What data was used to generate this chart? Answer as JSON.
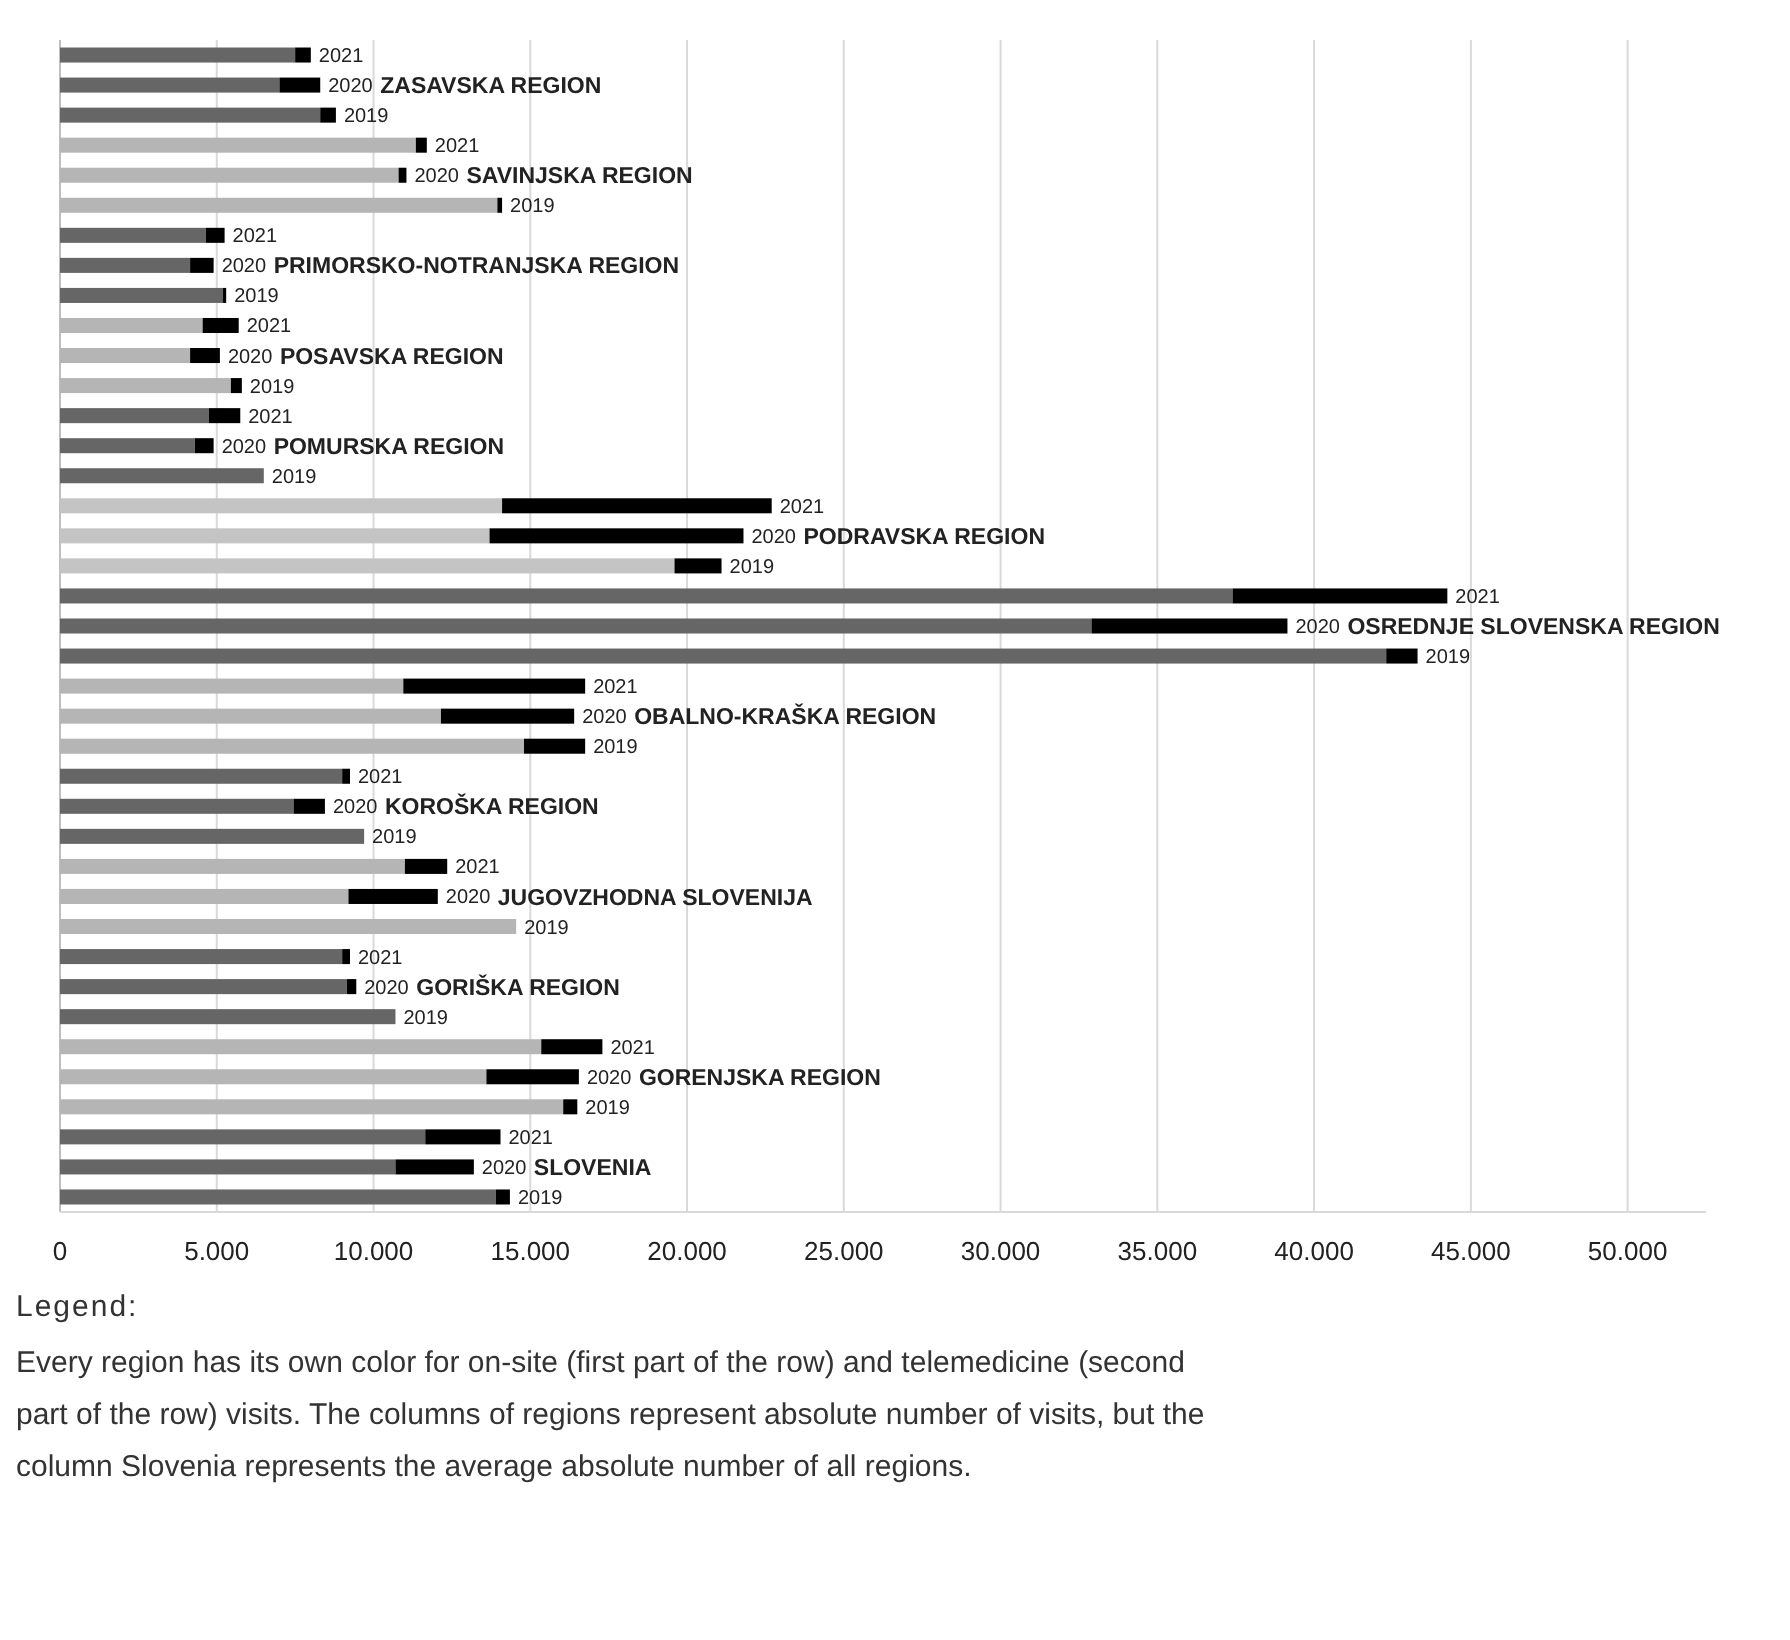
{
  "chart_data": {
    "type": "bar",
    "orientation": "horizontal",
    "stacked": true,
    "legend": false,
    "grid": "x",
    "categories": [
      null,
      null,
      null,
      null,
      null,
      null,
      null,
      null,
      null,
      null,
      null,
      null,
      null,
      null,
      null,
      null,
      null,
      null,
      null,
      null,
      null,
      null,
      null,
      null,
      null,
      null,
      null,
      null,
      null,
      null,
      null,
      null,
      null,
      null,
      null,
      null,
      null,
      null,
      null
    ],
    "xlim": [
      0,
      52500
    ],
    "xticks": [
      0,
      {
        "value": 5000,
        "label": "5.000"
      },
      {
        "value": 10000,
        "label": "10.000"
      },
      {
        "value": 15000,
        "label": "15.000"
      },
      {
        "value": 20000,
        "label": "20.000"
      },
      {
        "value": 25000,
        "label": "25.000"
      },
      {
        "value": 30000,
        "label": "30.000"
      },
      {
        "value": 35000,
        "label": "35.000"
      },
      {
        "value": 40000,
        "label": "40.000"
      },
      {
        "value": 45000,
        "label": "45.000"
      },
      {
        "value": 50000,
        "label": "50.000"
      }
    ],
    "series": [
      {
        "colors": [
          "#666666",
          "#666666",
          "#666666",
          "#b5b5b5",
          "#b5b5b5",
          "#b5b5b5",
          "#666666",
          "#666666",
          "#666666",
          "#b5b5b5",
          "#b5b5b5",
          "#b5b5b5",
          "#666666",
          "#666666",
          "#666666",
          "#c4c4c4",
          "#c4c4c4",
          "#c4c4c4",
          "#666666",
          "#666666",
          "#666666",
          "#b5b5b5",
          "#b5b5b5",
          "#b5b5b5",
          "#666666",
          "#666666",
          "#666666",
          "#b5b5b5",
          "#b5b5b5",
          "#b5b5b5",
          "#666666",
          "#666666",
          "#666666",
          "#b5b5b5",
          "#b5b5b5",
          "#b5b5b5",
          "#666666",
          "#666666",
          "#666666"
        ],
        "values": [
          7500,
          7000,
          8300,
          11350,
          10800,
          13950,
          4650,
          4150,
          5200,
          4550,
          4150,
          5450,
          4750,
          4300,
          6500,
          14100,
          13700,
          19600,
          37400,
          32900,
          42300,
          10950,
          12150,
          14800,
          9000,
          7450,
          9700,
          11000,
          9200,
          14550,
          9000,
          9150,
          10700,
          15350,
          13600,
          16050,
          11650,
          10700,
          13900
        ]
      },
      {
        "color": "#000000",
        "values": [
          500,
          1300,
          500,
          350,
          250,
          150,
          600,
          750,
          100,
          1150,
          950,
          350,
          1000,
          600,
          0,
          8600,
          8100,
          1500,
          6850,
          6250,
          1000,
          5800,
          4250,
          1950,
          250,
          1000,
          0,
          1350,
          2850,
          0,
          250,
          300,
          0,
          1950,
          2950,
          450,
          2400,
          2500,
          450
        ]
      }
    ],
    "annotations": [
      "2021",
      "2020",
      "2019",
      "2021",
      "2020",
      "2019",
      "2021",
      "2020",
      "2019",
      "2021",
      "2020",
      "2019",
      "2021",
      "2020",
      "2019",
      "2021",
      "2020",
      "2019",
      "2021",
      "2020",
      "2019",
      "2021",
      "2020",
      "2019",
      "2021",
      "2020",
      "2019",
      "2021",
      "2020",
      "2019",
      "2021",
      "2020",
      "2019",
      "2021",
      "2020",
      "2019",
      "2021",
      "2020",
      "2019",
      "ZASAVSKA REGION",
      "SAVINJSKA REGION",
      "PRIMORSKO-NOTRANJSKA REGION",
      "POSAVSKA REGION",
      "POMURSKA REGION",
      "PODRAVSKA REGION",
      "OSREDNJE SLOVENSKA REGION",
      "OBALNO-KRAŠKA REGION",
      "KOROŠKA REGION",
      "JUGOVZHODNA SLOVENIJA",
      "GORIŠKA REGION",
      "GORENJSKA REGION",
      "SLOVENIA",
      "Legend:",
      "Every region has its own color for on-site (first part of the row) and telemedicine (second part of the row) visits. The columns of regions represent absolute number of visits, but the column Slovenia represents the average absolute number of all regions."
    ]
  }
}
